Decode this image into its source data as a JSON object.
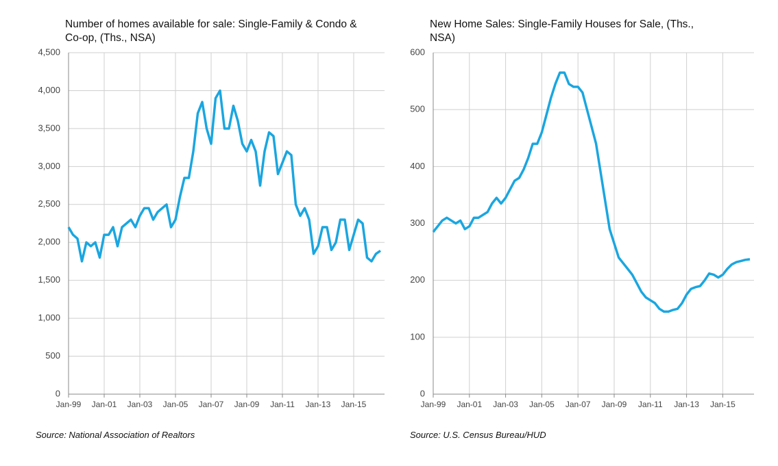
{
  "chart_data": [
    {
      "type": "line",
      "title": "Number of homes available for sale: Single-Family & Condo & Co-op, (Ths., NSA)",
      "source": "Source: National Association of Realtors",
      "categories": [
        "Jan-99",
        null,
        null,
        null,
        null,
        null,
        null,
        null,
        "Jan-01",
        null,
        null,
        null,
        null,
        null,
        null,
        null,
        "Jan-03",
        null,
        null,
        null,
        null,
        null,
        null,
        null,
        "Jan-05",
        null,
        null,
        null,
        null,
        null,
        null,
        null,
        "Jan-07",
        null,
        null,
        null,
        null,
        null,
        null,
        null,
        "Jan-09",
        null,
        null,
        null,
        null,
        null,
        null,
        null,
        "Jan-11",
        null,
        null,
        null,
        null,
        null,
        null,
        null,
        "Jan-13",
        null,
        null,
        null,
        null,
        null,
        null,
        null,
        "Jan-15",
        null,
        null,
        null,
        null,
        null,
        null
      ],
      "series": [
        {
          "color": "#1aa6e0",
          "values": [
            2200,
            2100,
            2050,
            1750,
            2000,
            1950,
            2000,
            1800,
            2100,
            2100,
            2200,
            1950,
            2200,
            2250,
            2300,
            2200,
            2350,
            2450,
            2450,
            2300,
            2400,
            2450,
            2500,
            2200,
            2300,
            2600,
            2850,
            2850,
            3200,
            3700,
            3850,
            3500,
            3300,
            3900,
            4000,
            3500,
            3500,
            3800,
            3600,
            3300,
            3200,
            3350,
            3200,
            2750,
            3200,
            3450,
            3400,
            2900,
            3050,
            3200,
            3150,
            2500,
            2350,
            2450,
            2300,
            1850,
            1950,
            2200,
            2200,
            1900,
            2000,
            2300,
            2300,
            1900,
            2100,
            2300,
            2250,
            1800,
            1750,
            1850,
            1890
          ]
        }
      ],
      "ylim": [
        0,
        4500
      ],
      "yticks": [
        0,
        {
          "value": 500,
          "label": "500"
        },
        {
          "value": 1000,
          "label": "1,000"
        },
        {
          "value": 1500,
          "label": "1,500"
        },
        {
          "value": 2000,
          "label": "2,000"
        },
        {
          "value": 2500,
          "label": "2,500"
        },
        {
          "value": 3000,
          "label": "3,000"
        },
        {
          "value": 3500,
          "label": "3,500"
        },
        {
          "value": 4000,
          "label": "4,000"
        },
        {
          "value": 4500,
          "label": "4,500"
        }
      ],
      "grid": true
    },
    {
      "type": "line",
      "title": "New Home Sales: Single-Family Houses for Sale, (Ths., NSA)",
      "source": "Source: U.S. Census Bureau/HUD",
      "categories": [
        "Jan-99",
        null,
        null,
        null,
        null,
        null,
        null,
        null,
        "Jan-01",
        null,
        null,
        null,
        null,
        null,
        null,
        null,
        "Jan-03",
        null,
        null,
        null,
        null,
        null,
        null,
        null,
        "Jan-05",
        null,
        null,
        null,
        null,
        null,
        null,
        null,
        "Jan-07",
        null,
        null,
        null,
        null,
        null,
        null,
        null,
        "Jan-09",
        null,
        null,
        null,
        null,
        null,
        null,
        null,
        "Jan-11",
        null,
        null,
        null,
        null,
        null,
        null,
        null,
        "Jan-13",
        null,
        null,
        null,
        null,
        null,
        null,
        null,
        "Jan-15",
        null,
        null,
        null,
        null,
        null,
        null
      ],
      "series": [
        {
          "color": "#1aa6e0",
          "values": [
            285,
            295,
            305,
            310,
            305,
            300,
            305,
            290,
            295,
            310,
            310,
            315,
            320,
            335,
            345,
            335,
            345,
            360,
            375,
            380,
            395,
            415,
            440,
            440,
            460,
            490,
            520,
            545,
            565,
            565,
            545,
            540,
            540,
            530,
            500,
            470,
            440,
            390,
            340,
            290,
            265,
            240,
            230,
            220,
            210,
            195,
            180,
            170,
            165,
            160,
            150,
            145,
            145,
            148,
            150,
            160,
            175,
            185,
            188,
            190,
            200,
            212,
            210,
            205,
            210,
            220,
            228,
            232,
            234,
            236,
            237
          ]
        }
      ],
      "ylim": [
        0,
        600
      ],
      "yticks": [
        0,
        100,
        200,
        300,
        400,
        500,
        600
      ],
      "grid": true
    }
  ]
}
